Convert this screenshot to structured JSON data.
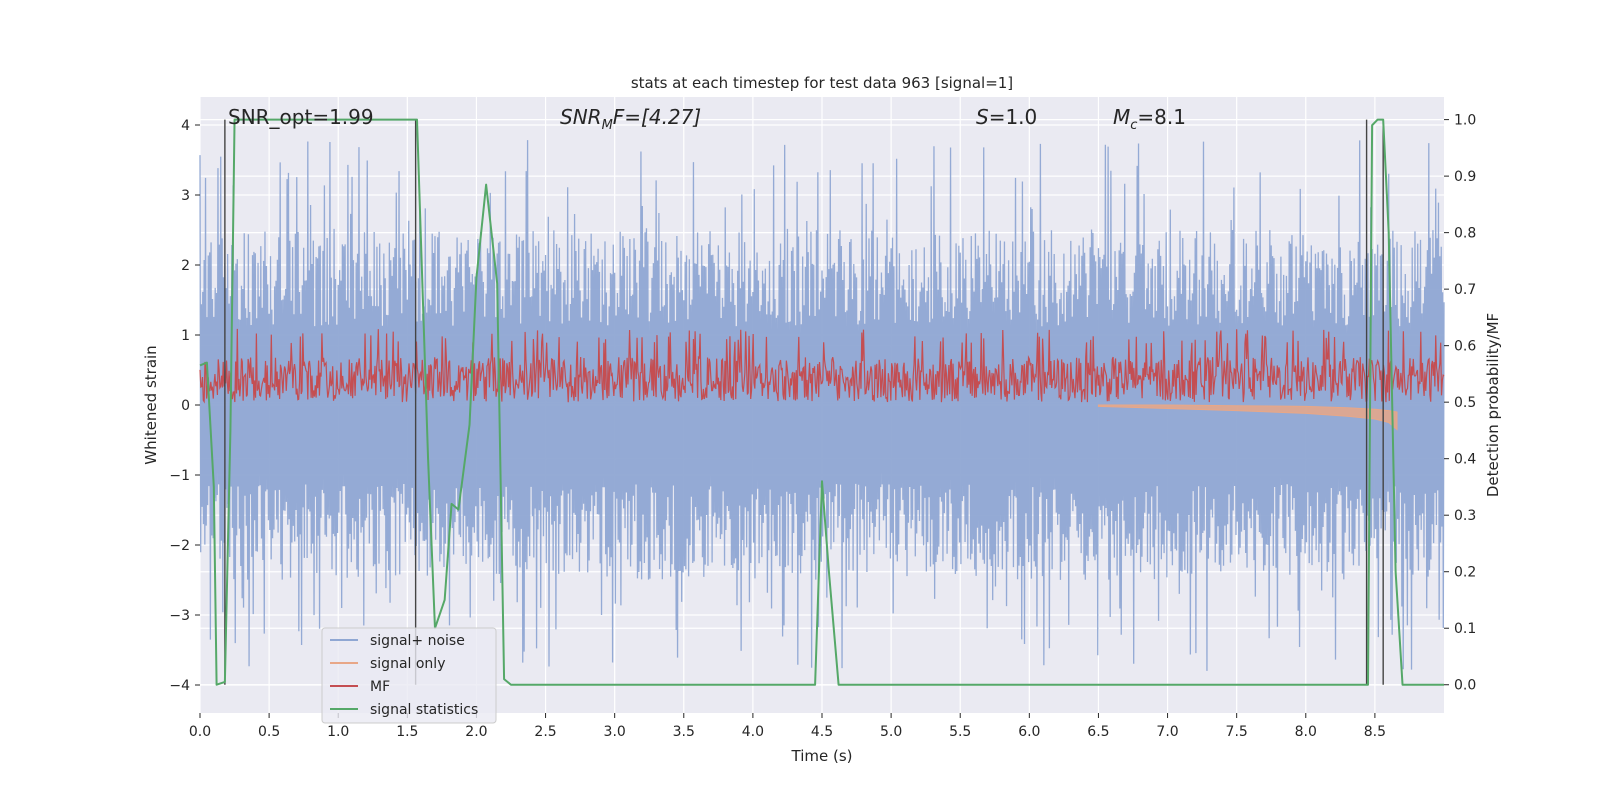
{
  "chart_data": {
    "type": "line",
    "title": "stats at each timestep for test data 963 [signal=1]",
    "xlabel": "Time (s)",
    "ylabel": "Whitened strain",
    "ylabel_right": "Detection probability/MF",
    "xlim": [
      0.0,
      9.0
    ],
    "ylim": [
      -4.4,
      4.4
    ],
    "ylim_right": [
      -0.05,
      1.04
    ],
    "x_ticks": [
      0.0,
      0.5,
      1.0,
      1.5,
      2.0,
      2.5,
      3.0,
      3.5,
      4.0,
      4.5,
      5.0,
      5.5,
      6.0,
      6.5,
      7.0,
      7.5,
      8.0,
      8.5
    ],
    "x_tick_labels": [
      "0.0",
      "0.5",
      "1.0",
      "1.5",
      "2.0",
      "2.5",
      "3.0",
      "3.5",
      "4.0",
      "4.5",
      "5.0",
      "5.5",
      "6.0",
      "6.5",
      "7.0",
      "7.5",
      "8.0",
      "8.5"
    ],
    "y_ticks": [
      4,
      3,
      2,
      1,
      0,
      -1,
      -2,
      -3,
      -4
    ],
    "y_tick_labels": [
      "4",
      "3",
      "2",
      "1",
      "0",
      "−1",
      "−2",
      "−3",
      "−4"
    ],
    "y_right_ticks": [
      1.0,
      0.9,
      0.8,
      0.7,
      0.6,
      0.5,
      0.4,
      0.3,
      0.2,
      0.1,
      0.0
    ],
    "y_right_tick_labels": [
      "1.0",
      "0.9",
      "0.8",
      "0.7",
      "0.6",
      "0.5",
      "0.4",
      "0.3",
      "0.2",
      "0.1",
      "0.0"
    ],
    "grid": true,
    "legend_position": "lower-left",
    "annotations": {
      "snr_opt": "SNR_opt=1.99",
      "snr_mf_base": "SNR",
      "snr_mf_sub": "M",
      "snr_mf_rest": "F=[4.27]",
      "s_base": "S",
      "s_rest": "=1.0",
      "mc_base": "M",
      "mc_sub": "c",
      "mc_rest": "=8.1"
    },
    "series": [
      {
        "name": "signal+ noise",
        "color": "#8fa7d3",
        "axis": "left",
        "style": "dense-noise",
        "amplitude_typical": 2.5,
        "amplitude_max": 3.8,
        "x_range": [
          0.0,
          9.0
        ]
      },
      {
        "name": "signal only",
        "color": "#e8a787",
        "axis": "left",
        "style": "chirp",
        "x": [
          6.5,
          7.0,
          7.5,
          8.0,
          8.3,
          8.5,
          8.6,
          8.66
        ],
        "y_low": [
          -0.02,
          -0.05,
          -0.08,
          -0.12,
          -0.16,
          -0.2,
          -0.25,
          -0.35
        ],
        "y_high": [
          0.0,
          0.0,
          -0.01,
          -0.02,
          -0.04,
          -0.06,
          -0.08,
          -0.1
        ]
      },
      {
        "name": "MF",
        "color": "#c44e52",
        "axis": "right",
        "style": "dense-noise",
        "baseline": 0.5,
        "amplitude_typical": 0.58,
        "amplitude_max": 0.63,
        "x_range": [
          0.0,
          9.0
        ]
      },
      {
        "name": "signal statistics",
        "color": "#55a868",
        "axis": "right",
        "style": "line",
        "x": [
          0.0,
          0.05,
          0.1,
          0.12,
          0.18,
          0.22,
          0.25,
          0.3,
          1.5,
          1.57,
          1.65,
          1.7,
          1.77,
          1.82,
          1.87,
          1.95,
          2.0,
          2.07,
          2.15,
          2.2,
          2.25,
          4.0,
          4.45,
          4.5,
          4.55,
          4.62,
          8.45,
          8.48,
          8.52,
          8.56,
          8.6,
          8.65,
          8.7,
          9.0
        ],
        "y": [
          0.565,
          0.57,
          0.35,
          0.0,
          0.005,
          0.45,
          1.0,
          1.0,
          1.0,
          1.0,
          0.4,
          0.1,
          0.15,
          0.32,
          0.31,
          0.46,
          0.72,
          0.885,
          0.71,
          0.01,
          0.0,
          0.0,
          0.0,
          0.36,
          0.2,
          0.0,
          0.0,
          0.99,
          1.0,
          1.0,
          0.8,
          0.2,
          0.0,
          0.0
        ]
      }
    ],
    "vertical_markers": [
      {
        "x": 0.18,
        "y_top": 1.0,
        "y_bottom": 0.0,
        "color": "#444444"
      },
      {
        "x": 1.56,
        "y_top": 1.0,
        "y_bottom": 0.0,
        "color": "#444444"
      },
      {
        "x": 8.44,
        "y_top": 1.0,
        "y_bottom": 0.0,
        "color": "#444444"
      },
      {
        "x": 8.56,
        "y_top": 1.0,
        "y_bottom": 0.0,
        "color": "#444444"
      }
    ],
    "colors": {
      "plot_background": "#eaeaf2",
      "grid": "#ffffff"
    }
  }
}
